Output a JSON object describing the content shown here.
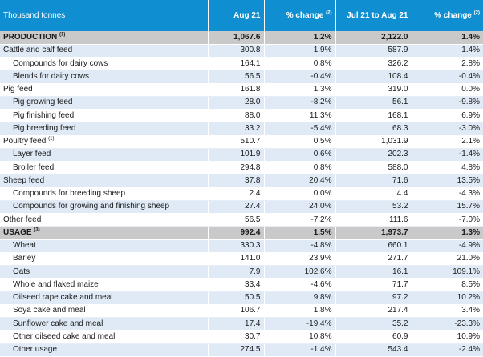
{
  "header": {
    "label": "Thousand tonnes",
    "col1": "Aug 21",
    "col2": "% change",
    "col2_sup": "(2)",
    "col3": "Jul 21 to Aug 21",
    "col4": "% change",
    "col4_sup": "(2)"
  },
  "rows": [
    {
      "label": "PRODUCTION",
      "sup": "(1)",
      "aug": "1,067.6",
      "chg1": "1.2%",
      "jul_aug": "2,122.0",
      "chg2": "1.4%",
      "style": "section",
      "indent": 1
    },
    {
      "label": "Cattle and calf feed",
      "sup": "",
      "aug": "300.8",
      "chg1": "1.9%",
      "jul_aug": "587.9",
      "chg2": "1.4%",
      "style": "alt",
      "indent": 1
    },
    {
      "label": "Compounds for dairy cows",
      "sup": "",
      "aug": "164.1",
      "chg1": "0.8%",
      "jul_aug": "326.2",
      "chg2": "2.8%",
      "style": "plain",
      "indent": 2
    },
    {
      "label": "Blends for dairy cows",
      "sup": "",
      "aug": "56.5",
      "chg1": "-0.4%",
      "jul_aug": "108.4",
      "chg2": "-0.4%",
      "style": "alt",
      "indent": 2
    },
    {
      "label": "Pig feed",
      "sup": "",
      "aug": "161.8",
      "chg1": "1.3%",
      "jul_aug": "319.0",
      "chg2": "0.0%",
      "style": "plain",
      "indent": 1
    },
    {
      "label": "Pig growing feed",
      "sup": "",
      "aug": "28.0",
      "chg1": "-8.2%",
      "jul_aug": "56.1",
      "chg2": "-9.8%",
      "style": "alt",
      "indent": 2
    },
    {
      "label": "Pig finishing feed",
      "sup": "",
      "aug": "88.0",
      "chg1": "11.3%",
      "jul_aug": "168.1",
      "chg2": "6.9%",
      "style": "plain",
      "indent": 2
    },
    {
      "label": "Pig breeding feed",
      "sup": "",
      "aug": "33.2",
      "chg1": "-5.4%",
      "jul_aug": "68.3",
      "chg2": "-3.0%",
      "style": "alt",
      "indent": 2
    },
    {
      "label": "Poultry feed",
      "sup": "(1)",
      "aug": "510.7",
      "chg1": "0.5%",
      "jul_aug": "1,031.9",
      "chg2": "2.1%",
      "style": "plain",
      "indent": 1
    },
    {
      "label": "Layer feed",
      "sup": "",
      "aug": "101.9",
      "chg1": "0.6%",
      "jul_aug": "202.3",
      "chg2": "-1.4%",
      "style": "alt",
      "indent": 2
    },
    {
      "label": "Broiler feed",
      "sup": "",
      "aug": "294.8",
      "chg1": "0.8%",
      "jul_aug": "588.0",
      "chg2": "4.8%",
      "style": "plain",
      "indent": 2
    },
    {
      "label": "Sheep feed",
      "sup": "",
      "aug": "37.8",
      "chg1": "20.4%",
      "jul_aug": "71.6",
      "chg2": "13.5%",
      "style": "alt",
      "indent": 1
    },
    {
      "label": "Compounds for breeding sheep",
      "sup": "",
      "aug": "2.4",
      "chg1": "0.0%",
      "jul_aug": "4.4",
      "chg2": "-4.3%",
      "style": "plain",
      "indent": 2
    },
    {
      "label": "Compounds for growing and finishing sheep",
      "sup": "",
      "aug": "27.4",
      "chg1": "24.0%",
      "jul_aug": "53.2",
      "chg2": "15.7%",
      "style": "alt",
      "indent": 2
    },
    {
      "label": "Other feed",
      "sup": "",
      "aug": "56.5",
      "chg1": "-7.2%",
      "jul_aug": "111.6",
      "chg2": "-7.0%",
      "style": "plain",
      "indent": 1
    },
    {
      "label": "USAGE",
      "sup": "(3)",
      "aug": "992.4",
      "chg1": "1.5%",
      "jul_aug": "1,973.7",
      "chg2": "1.3%",
      "style": "section",
      "indent": 1
    },
    {
      "label": "Wheat",
      "sup": "",
      "aug": "330.3",
      "chg1": "-4.8%",
      "jul_aug": "660.1",
      "chg2": "-4.9%",
      "style": "alt",
      "indent": 2
    },
    {
      "label": "Barley",
      "sup": "",
      "aug": "141.0",
      "chg1": "23.9%",
      "jul_aug": "271.7",
      "chg2": "21.0%",
      "style": "plain",
      "indent": 2
    },
    {
      "label": "Oats",
      "sup": "",
      "aug": "7.9",
      "chg1": "102.6%",
      "jul_aug": "16.1",
      "chg2": "109.1%",
      "style": "alt",
      "indent": 2
    },
    {
      "label": "Whole and flaked maize",
      "sup": "",
      "aug": "33.4",
      "chg1": "-4.6%",
      "jul_aug": "71.7",
      "chg2": "8.5%",
      "style": "plain",
      "indent": 2
    },
    {
      "label": "Oilseed rape cake and meal",
      "sup": "",
      "aug": "50.5",
      "chg1": "9.8%",
      "jul_aug": "97.2",
      "chg2": "10.2%",
      "style": "alt",
      "indent": 2
    },
    {
      "label": "Soya cake and meal",
      "sup": "",
      "aug": "106.7",
      "chg1": "1.8%",
      "jul_aug": "217.4",
      "chg2": "3.4%",
      "style": "plain",
      "indent": 2
    },
    {
      "label": "Sunflower cake and meal",
      "sup": "",
      "aug": "17.4",
      "chg1": "-19.4%",
      "jul_aug": "35.2",
      "chg2": "-23.3%",
      "style": "alt",
      "indent": 2
    },
    {
      "label": "Other oilseed cake and meal",
      "sup": "",
      "aug": "30.7",
      "chg1": "10.8%",
      "jul_aug": "60.9",
      "chg2": "10.9%",
      "style": "plain",
      "indent": 2
    },
    {
      "label": "Other usage",
      "sup": "",
      "aug": "274.5",
      "chg1": "-1.4%",
      "jul_aug": "543.4",
      "chg2": "-2.4%",
      "style": "alt",
      "indent": 2
    }
  ]
}
